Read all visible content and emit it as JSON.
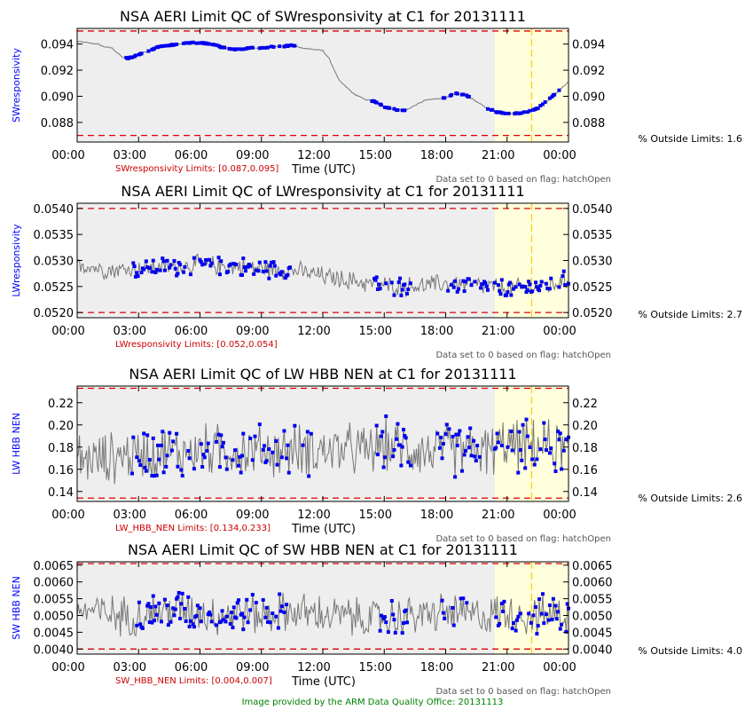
{
  "footer": "Image provided by the ARM Data Quality Office: 20131113",
  "colors": {
    "plot_bg": "#eeeeee",
    "flag_region": "#ffffdd",
    "limit_line": "#dd0000",
    "in_limit_points": "#0000ee",
    "trace": "#777777",
    "flag_marker": "#ffcc00"
  },
  "chart_data": [
    {
      "type": "line",
      "title": "NSA AERI Limit QC of SWresponsivity at C1 for 20131111",
      "xlabel": "Time (UTC)",
      "ylabel": "SWresponsivity",
      "x_ticks": [
        "00:00",
        "03:00",
        "06:00",
        "09:00",
        "12:00",
        "15:00",
        "18:00",
        "21:00",
        "00:00"
      ],
      "xlim_hours": [
        0,
        24
      ],
      "y_ticks": [
        "0.088",
        "0.090",
        "0.092",
        "0.094"
      ],
      "ylim": [
        0.0865,
        0.0952
      ],
      "limits": [
        0.087,
        0.095
      ],
      "limits_label": "SWresponsivity Limits: [0.087,0.095]",
      "flag_region_hours": [
        20.4,
        24
      ],
      "flag_marker_hour": 22.2,
      "flag_note": "Data set to 0 based on flag: hatchOpen",
      "pct_outside": "% Outside Limits: 1.6",
      "series": [
        {
          "x": [
            0,
            0.5,
            1,
            1.3,
            1.7,
            2.2,
            2.5,
            3,
            3.5,
            4,
            4.5,
            5,
            5.5,
            6,
            6.5,
            7,
            7.5,
            8,
            8.5,
            9,
            9.5,
            10,
            10.5,
            11,
            11.5,
            12,
            12.3,
            12.8,
            13.5,
            14,
            14.5,
            15,
            15.5,
            16,
            16.5,
            17,
            17.5,
            18,
            18.5,
            19,
            19.5,
            20,
            20.5,
            21,
            21.5,
            22,
            22.5,
            23,
            23.5,
            24
          ],
          "y": [
            0.0942,
            0.0941,
            0.094,
            0.0938,
            0.0937,
            0.093,
            0.0929,
            0.0932,
            0.0935,
            0.0938,
            0.0939,
            0.094,
            0.0941,
            0.0941,
            0.094,
            0.0938,
            0.0936,
            0.0936,
            0.0937,
            0.0937,
            0.0938,
            0.0938,
            0.0939,
            0.0937,
            0.0936,
            0.0935,
            0.0929,
            0.0912,
            0.0902,
            0.0898,
            0.0896,
            0.0892,
            0.089,
            0.0889,
            0.0893,
            0.0897,
            0.0898,
            0.0899,
            0.0902,
            0.0901,
            0.0896,
            0.0891,
            0.0888,
            0.0887,
            0.0887,
            0.0888,
            0.0891,
            0.0897,
            0.0904,
            0.0911
          ]
        }
      ],
      "highlight_hours": [
        [
          2.3,
          10.7
        ],
        [
          14.3,
          16.2
        ],
        [
          17.8,
          19.3
        ],
        [
          20.0,
          23.8
        ]
      ]
    },
    {
      "type": "line",
      "title": "NSA AERI Limit QC of LWresponsivity at C1 for 20131111",
      "xlabel": "",
      "ylabel": "LWresponsivity",
      "x_ticks": [
        "00:00",
        "03:00",
        "06:00",
        "09:00",
        "12:00",
        "15:00",
        "18:00",
        "21:00",
        "00:00"
      ],
      "xlim_hours": [
        0,
        24
      ],
      "y_ticks": [
        "0.0520",
        "0.0525",
        "0.0530",
        "0.0535",
        "0.0540"
      ],
      "ylim": [
        0.0519,
        0.0541
      ],
      "limits": [
        0.052,
        0.054
      ],
      "limits_label": "LWresponsivity Limits: [0.052,0.054]",
      "flag_region_hours": [
        20.4,
        24
      ],
      "flag_marker_hour": 22.2,
      "flag_note": "Data set to 0 based on flag: hatchOpen",
      "pct_outside": "% Outside Limits: 2.7",
      "series": [
        {
          "x": [
            0,
            1,
            2,
            3,
            4,
            5,
            6,
            7,
            8,
            9,
            10,
            11,
            12,
            13,
            14,
            15,
            16,
            17,
            18,
            19,
            20,
            21,
            22,
            23,
            24
          ],
          "y": [
            0.05295,
            0.05285,
            0.05282,
            0.05285,
            0.05287,
            0.05289,
            0.05292,
            0.0529,
            0.05288,
            0.05285,
            0.05283,
            0.05278,
            0.0527,
            0.05263,
            0.05258,
            0.05252,
            0.0525,
            0.05252,
            0.05256,
            0.05254,
            0.0525,
            0.05245,
            0.05248,
            0.05252,
            0.05262
          ]
        }
      ],
      "highlight_hours": [
        [
          2.7,
          10.5
        ],
        [
          14.5,
          16.3
        ],
        [
          18.0,
          20.8
        ],
        [
          20.8,
          24
        ]
      ],
      "noise_amp": 0.00022
    },
    {
      "type": "line",
      "title": "NSA AERI Limit QC of LW HBB NEN at C1 for 20131111",
      "xlabel": "Time (UTC)",
      "ylabel": "LW HBB NEN",
      "x_ticks": [
        "00:00",
        "03:00",
        "06:00",
        "09:00",
        "12:00",
        "15:00",
        "18:00",
        "21:00",
        "00:00"
      ],
      "xlim_hours": [
        0,
        24
      ],
      "y_ticks": [
        "0.14",
        "0.16",
        "0.18",
        "0.20",
        "0.22"
      ],
      "ylim": [
        0.131,
        0.235
      ],
      "limits": [
        0.134,
        0.233
      ],
      "limits_label": "LW_HBB_NEN Limits: [0.134,0.233]",
      "flag_region_hours": [
        20.4,
        24
      ],
      "flag_marker_hour": 22.2,
      "flag_note": "Data set to 0 based on flag: hatchOpen",
      "pct_outside": "% Outside Limits: 2.6",
      "series": [
        {
          "x": [
            0,
            1,
            2,
            3,
            4,
            5,
            6,
            7,
            8,
            9,
            10,
            11,
            12,
            13,
            14,
            15,
            16,
            17,
            18,
            19,
            20,
            21,
            22,
            23,
            24
          ],
          "y": [
            0.17,
            0.168,
            0.172,
            0.174,
            0.176,
            0.175,
            0.177,
            0.178,
            0.176,
            0.177,
            0.176,
            0.178,
            0.177,
            0.178,
            0.176,
            0.182,
            0.18,
            0.176,
            0.177,
            0.178,
            0.176,
            0.183,
            0.18,
            0.181,
            0.178
          ]
        }
      ],
      "highlight_hours": [
        [
          2.5,
          11.5
        ],
        [
          14.6,
          16.3
        ],
        [
          17.5,
          19.8
        ],
        [
          20.4,
          24
        ]
      ],
      "noise_amp": 0.028
    },
    {
      "type": "line",
      "title": "NSA AERI Limit QC of SW HBB NEN at C1 for 20131111",
      "xlabel": "Time (UTC)",
      "ylabel": "SW HBB NEN",
      "x_ticks": [
        "00:00",
        "03:00",
        "06:00",
        "09:00",
        "12:00",
        "15:00",
        "18:00",
        "21:00",
        "00:00"
      ],
      "xlim_hours": [
        0,
        24
      ],
      "y_ticks": [
        "0.0040",
        "0.0045",
        "0.0050",
        "0.0055",
        "0.0060",
        "0.0065"
      ],
      "ylim": [
        0.00385,
        0.0066
      ],
      "limits": [
        0.004,
        0.007
      ],
      "limits_label": "SW_HBB_NEN Limits: [0.004,0.007]",
      "flag_region_hours": [
        20.4,
        24
      ],
      "flag_marker_hour": 22.2,
      "flag_note": "Data set to 0 based on flag: hatchOpen",
      "pct_outside": "% Outside Limits: 4.0",
      "series": [
        {
          "x": [
            0,
            1,
            2,
            3,
            4,
            5,
            6,
            7,
            8,
            9,
            10,
            11,
            12,
            13,
            14,
            15,
            16,
            17,
            18,
            19,
            20,
            21,
            22,
            23,
            24
          ],
          "y": [
            0.0052,
            0.0051,
            0.005,
            0.005,
            0.0051,
            0.0052,
            0.0051,
            0.005,
            0.0051,
            0.005,
            0.0051,
            0.0051,
            0.005,
            0.005,
            0.0049,
            0.0049,
            0.005,
            0.005,
            0.0051,
            0.005,
            0.005,
            0.0051,
            0.005,
            0.005,
            0.0051
          ]
        }
      ],
      "highlight_hours": [
        [
          2.6,
          10.5
        ],
        [
          14.8,
          16.2
        ],
        [
          17.8,
          19.2
        ],
        [
          20.4,
          24
        ]
      ],
      "noise_amp": 0.0007
    }
  ]
}
